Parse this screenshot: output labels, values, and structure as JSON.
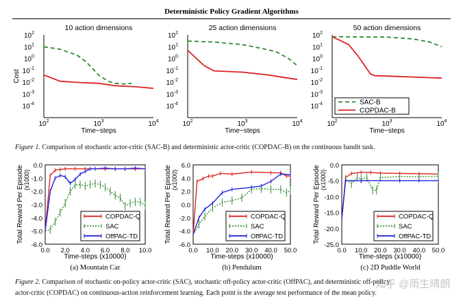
{
  "header": {
    "title": "Deterministic Policy Gradient Algorithms"
  },
  "figure1": {
    "label": "Figure 1.",
    "caption": "Comparison of stochastic actor-critic (SAC-B) and deterministic actor-critic (COPDAC-B) on the continuous bandit task."
  },
  "figure2": {
    "label": "Figure 2.",
    "caption_line1": "Comparison of stochastic on-policy actor-critic (SAC), stochastic off-policy actor-critic (OffPAC), and deterministic off-policy",
    "caption_line2": "actor-critic (COPDAC) on continuous-action reinforcement learning. Each point is the average test performance of the mean policy.",
    "subcaptions": [
      "(a) Mountain Car",
      "(b) Pendulum",
      "(c) 2D Puddle World"
    ]
  },
  "watermark": "知乎 @雨生晴朗",
  "colors": {
    "red": "#dd2222",
    "green": "#2e8b2e",
    "blue": "#2222dd"
  },
  "chart_data": [
    {
      "type": "line",
      "title": "10 action dimensions",
      "xlabel": "Time−steps",
      "ylabel": "Cost",
      "xscale": "log",
      "yscale": "log",
      "xlim": [
        100,
        10000
      ],
      "ylim": [
        1e-05,
        100
      ],
      "xticks": [
        "10^2",
        "10^3",
        "10^4"
      ],
      "yticks": [
        "10^2",
        "10^1",
        "10^0",
        "10^-1",
        "10^-2",
        "10^-3",
        "10^-4"
      ],
      "series": [
        {
          "name": "SAC-B",
          "style": "dashed",
          "color": "green",
          "x": [
            100,
            200,
            400,
            600,
            800,
            1000,
            1500,
            2000,
            3000,
            4000
          ],
          "y": [
            10,
            6,
            2,
            0.5,
            0.12,
            0.04,
            0.012,
            0.008,
            0.007,
            0.008
          ]
        },
        {
          "name": "COPDAC-B",
          "style": "solid",
          "color": "red",
          "x": [
            100,
            200,
            500,
            1000,
            2000,
            5000,
            10000
          ],
          "y": [
            0.04,
            0.012,
            0.009,
            0.008,
            0.005,
            0.004,
            0.003
          ]
        }
      ]
    },
    {
      "type": "line",
      "title": "25 action dimensions",
      "xlabel": "Time−steps",
      "ylabel": "",
      "xscale": "log",
      "yscale": "log",
      "xlim": [
        100,
        10000
      ],
      "ylim": [
        1e-05,
        100
      ],
      "xticks": [
        "10^2",
        "10^3",
        "10^4"
      ],
      "yticks": [
        "10^2",
        "10^1",
        "10^0",
        "10^-1",
        "10^-2",
        "10^-3",
        "10^-4"
      ],
      "series": [
        {
          "name": "SAC-B",
          "style": "dashed",
          "color": "green",
          "x": [
            100,
            300,
            1000,
            2000,
            4000,
            7000,
            10000
          ],
          "y": [
            30,
            25,
            15,
            8,
            4,
            1,
            0.25
          ]
        },
        {
          "name": "COPDAC-B",
          "style": "solid",
          "color": "red",
          "x": [
            100,
            200,
            300,
            1000,
            3000,
            10000
          ],
          "y": [
            5,
            0.25,
            0.09,
            0.07,
            0.04,
            0.017
          ]
        }
      ]
    },
    {
      "type": "line",
      "title": "50 action dimensions",
      "xlabel": "Time−steps",
      "ylabel": "",
      "xscale": "log",
      "yscale": "log",
      "xlim": [
        100,
        10000
      ],
      "ylim": [
        1e-05,
        100
      ],
      "xticks": [
        "10^2",
        "10^3",
        "10^4"
      ],
      "yticks": [
        "10^2",
        "10^1",
        "10^0",
        "10^-1",
        "10^-2",
        "10^-3",
        "10^-4"
      ],
      "legend": "bottom-right",
      "series": [
        {
          "name": "SAC-B",
          "style": "dashed",
          "color": "green",
          "x": [
            100,
            1000,
            3000,
            6000,
            10000
          ],
          "y": [
            70,
            65,
            45,
            25,
            10
          ]
        },
        {
          "name": "COPDAC-B",
          "style": "solid",
          "color": "red",
          "x": [
            100,
            200,
            300,
            500,
            600,
            1000,
            10000
          ],
          "y": [
            70,
            15,
            1.5,
            0.05,
            0.035,
            0.033,
            0.022
          ]
        }
      ]
    },
    {
      "type": "line",
      "title": "",
      "xlabel": "Time-steps (x10000)",
      "ylabel": "Total Reward Per Episode",
      "ylabel2": "(x1000)",
      "xlim": [
        0,
        10
      ],
      "ylim": [
        -6,
        0
      ],
      "xticks": [
        "0.0",
        "2.0",
        "4.0",
        "6.0",
        "8.0",
        "10.0"
      ],
      "yticks": [
        "0.0",
        "-1.0",
        "-2.0",
        "-3.0",
        "-4.0",
        "-5.0",
        "-6.0"
      ],
      "legend": "bottom-right",
      "series": [
        {
          "name": "COPDAC-Q",
          "style": "solid",
          "color": "red",
          "x": [
            0,
            0.5,
            1,
            1.5,
            2,
            3,
            4,
            5,
            6,
            7,
            8,
            9,
            10
          ],
          "y": [
            -5,
            -0.8,
            -0.4,
            -0.35,
            -0.3,
            -0.3,
            -0.3,
            -0.3,
            -0.3,
            -0.3,
            -0.3,
            -0.3,
            -0.3
          ]
        },
        {
          "name": "SAC",
          "style": "dotted",
          "color": "green",
          "x": [
            0,
            0.5,
            1,
            1.5,
            2,
            2.5,
            3,
            3.5,
            4,
            4.5,
            5,
            5.5,
            6,
            6.5,
            7,
            7.5,
            8,
            8.5,
            9,
            9.5,
            10
          ],
          "y": [
            -5,
            -4.9,
            -4.3,
            -3.6,
            -2.9,
            -2,
            -1.5,
            -1.5,
            -1.6,
            -1.5,
            -1.4,
            -1.5,
            -1.7,
            -2,
            -2.3,
            -2.5,
            -3.1,
            -2.9,
            -2.8,
            -2.8,
            -3.1
          ]
        },
        {
          "name": "OffPAC-TD",
          "style": "solid",
          "color": "blue",
          "x": [
            0,
            0.5,
            1,
            1.5,
            2,
            2.5,
            3,
            3.5,
            4,
            4.5,
            5,
            6,
            7,
            8,
            9,
            10
          ],
          "y": [
            -5,
            -2,
            -1,
            -0.8,
            -0.9,
            -1.4,
            -1.1,
            -0.7,
            -0.5,
            -0.3,
            -0.3,
            -0.25,
            -0.3,
            -0.3,
            -0.25,
            -0.3
          ]
        }
      ]
    },
    {
      "type": "line",
      "title": "",
      "xlabel": "Time-steps (x10000)",
      "ylabel": "Total Reward Per Episode",
      "ylabel2": "(x1000)",
      "xlim": [
        0,
        50
      ],
      "ylim": [
        -6,
        6
      ],
      "xticks": [
        "0.0",
        "10.0",
        "20.0",
        "30.0",
        "40.0",
        "50.0"
      ],
      "yticks": [
        "6.0",
        "4.0",
        "2.0",
        "0.0",
        "-2.0",
        "-4.0",
        "-6.0"
      ],
      "legend": "bottom-right",
      "series": [
        {
          "name": "COPDAC-Q",
          "style": "solid",
          "color": "red",
          "x": [
            0,
            2,
            5,
            8,
            10,
            14,
            20,
            30,
            40,
            45,
            48,
            50
          ],
          "y": [
            -4.5,
            3.5,
            3.9,
            4.3,
            4.3,
            4.7,
            4.6,
            4.9,
            4.8,
            4.8,
            4.3,
            4.3
          ]
        },
        {
          "name": "SAC",
          "style": "dotted",
          "color": "green",
          "x": [
            0,
            3,
            6,
            10,
            15,
            20,
            25,
            30,
            35,
            40,
            45,
            48,
            50
          ],
          "y": [
            -4.6,
            -3,
            -1.8,
            -0.5,
            0.3,
            0.6,
            1,
            2.3,
            2.4,
            2.3,
            2.3,
            1.8,
            2.1
          ]
        },
        {
          "name": "OffPAC-TD",
          "style": "solid",
          "color": "blue",
          "x": [
            0,
            3,
            6,
            10,
            15,
            20,
            30,
            35,
            40,
            45,
            50
          ],
          "y": [
            -4.5,
            -2,
            -0.7,
            0.2,
            1.8,
            2.3,
            2.6,
            2.8,
            3.5,
            4.6,
            4.5
          ]
        }
      ]
    },
    {
      "type": "line",
      "title": "",
      "xlabel": "Time-steps (x10000)",
      "ylabel": "Total Reward Per Episode",
      "ylabel2": "(x1000)",
      "xlim": [
        0,
        50
      ],
      "ylim": [
        -25,
        0
      ],
      "xticks": [
        "0.0",
        "10.0",
        "20.0",
        "30.0",
        "40.0",
        "50.0"
      ],
      "yticks": [
        "0.0",
        "-5.0",
        "-10.0",
        "-15.0",
        "-20.0",
        "-25.0"
      ],
      "legend": "bottom-right",
      "series": [
        {
          "name": "COPDAC-Q",
          "style": "solid",
          "color": "red",
          "x": [
            0,
            2,
            5,
            10,
            15,
            20,
            30,
            40,
            50
          ],
          "y": [
            -17,
            -4,
            -2.7,
            -2.4,
            -2.4,
            -2.6,
            -2.7,
            -2.8,
            -2.9
          ]
        },
        {
          "name": "SAC",
          "style": "dotted",
          "color": "green",
          "x": [
            0,
            2,
            5,
            8,
            10,
            13,
            16,
            18,
            20,
            30,
            40,
            50
          ],
          "y": [
            -17,
            -4.5,
            -6,
            -4,
            -4.5,
            -4,
            -8,
            -8,
            -4,
            -3.7,
            -3.8,
            -3.6
          ]
        },
        {
          "name": "OffPAC-TD",
          "style": "solid",
          "color": "blue",
          "x": [
            0,
            2,
            10,
            30,
            40,
            50
          ],
          "y": [
            -17,
            -5,
            -5,
            -5,
            -5,
            -5
          ]
        }
      ]
    }
  ]
}
